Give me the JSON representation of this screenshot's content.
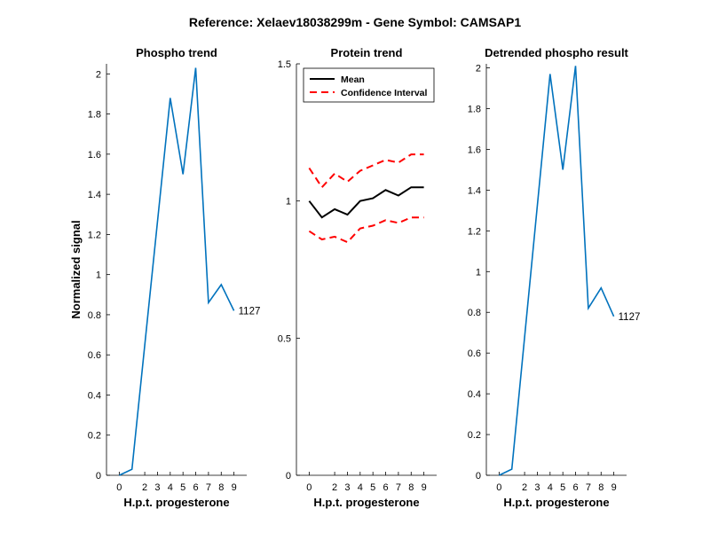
{
  "figure": {
    "title": "Reference:  Xelaev18038299m - Gene Symbol:  CAMSAP1"
  },
  "chart_data": [
    {
      "type": "line",
      "title": "Phospho trend",
      "xlabel": "H.p.t. progesterone",
      "ylabel": "Normalized signal",
      "xlim": [
        -1,
        10
      ],
      "ylim": [
        0,
        2.05
      ],
      "xticks": [
        0,
        2,
        3,
        4,
        5,
        6,
        7,
        8,
        9
      ],
      "yticks": [
        0,
        0.2,
        0.4,
        0.6,
        0.8,
        1,
        1.2,
        1.4,
        1.6,
        1.8,
        2
      ],
      "ytick_labels": [
        "0",
        "0.2",
        "0.4",
        "0.6",
        "0.8",
        "1",
        "1.2",
        "1.4",
        "1.6",
        "1.8",
        "2"
      ],
      "grid": false,
      "series": [
        {
          "x": [
            0,
            1,
            4,
            5,
            6,
            7,
            8,
            9
          ],
          "y": [
            0.0,
            0.03,
            1.88,
            1.5,
            2.03,
            0.86,
            0.95,
            0.82
          ],
          "color": "#0072BD"
        }
      ],
      "annotations": [
        {
          "text": "1127",
          "x": 9,
          "y": 0.82
        }
      ]
    },
    {
      "type": "line",
      "title": "Protein trend",
      "xlabel": "H.p.t. progesterone",
      "ylabel": "",
      "xlim": [
        -1,
        10
      ],
      "ylim": [
        0,
        1.5
      ],
      "xticks": [
        0,
        2,
        3,
        4,
        5,
        6,
        7,
        8,
        9
      ],
      "yticks": [
        0,
        0.5,
        1,
        1.5
      ],
      "ytick_labels": [
        "0",
        "0.5",
        "1",
        "1.5"
      ],
      "grid": false,
      "legend": {
        "position": "top-right",
        "entries": [
          "Mean",
          "Confidence Interval"
        ]
      },
      "series": [
        {
          "name": "Mean",
          "x": [
            0,
            1,
            2,
            3,
            4,
            5,
            6,
            7,
            8,
            9
          ],
          "y": [
            1.0,
            0.94,
            0.97,
            0.95,
            1.0,
            1.01,
            1.04,
            1.02,
            1.05,
            1.05
          ],
          "color": "#000000",
          "dash": "solid"
        },
        {
          "name": "Confidence Interval",
          "x": [
            0,
            1,
            2,
            3,
            4,
            5,
            6,
            7,
            8,
            9
          ],
          "y": [
            1.12,
            1.05,
            1.1,
            1.07,
            1.11,
            1.13,
            1.15,
            1.14,
            1.17,
            1.17
          ],
          "color": "#FF0000",
          "dash": "dashed"
        },
        {
          "name": "Confidence Interval",
          "x": [
            0,
            1,
            2,
            3,
            4,
            5,
            6,
            7,
            8,
            9
          ],
          "y": [
            0.89,
            0.86,
            0.87,
            0.85,
            0.9,
            0.91,
            0.93,
            0.92,
            0.94,
            0.94
          ],
          "color": "#FF0000",
          "dash": "dashed"
        }
      ]
    },
    {
      "type": "line",
      "title": "Detrended phospho result",
      "xlabel": "H.p.t. progesterone",
      "ylabel": "",
      "xlim": [
        -1,
        10
      ],
      "ylim": [
        0,
        2.02
      ],
      "xticks": [
        0,
        2,
        3,
        4,
        5,
        6,
        7,
        8,
        9
      ],
      "yticks": [
        0,
        0.2,
        0.4,
        0.6,
        0.8,
        1,
        1.2,
        1.4,
        1.6,
        1.8,
        2
      ],
      "ytick_labels": [
        "0",
        "0.2",
        "0.4",
        "0.6",
        "0.8",
        "1",
        "1.2",
        "1.4",
        "1.6",
        "1.8",
        "2"
      ],
      "grid": false,
      "series": [
        {
          "x": [
            0,
            1,
            4,
            5,
            6,
            7,
            8,
            9
          ],
          "y": [
            0.0,
            0.03,
            1.97,
            1.5,
            2.01,
            0.82,
            0.92,
            0.78
          ],
          "color": "#0072BD"
        }
      ],
      "annotations": [
        {
          "text": "1127",
          "x": 9,
          "y": 0.78
        }
      ]
    }
  ]
}
